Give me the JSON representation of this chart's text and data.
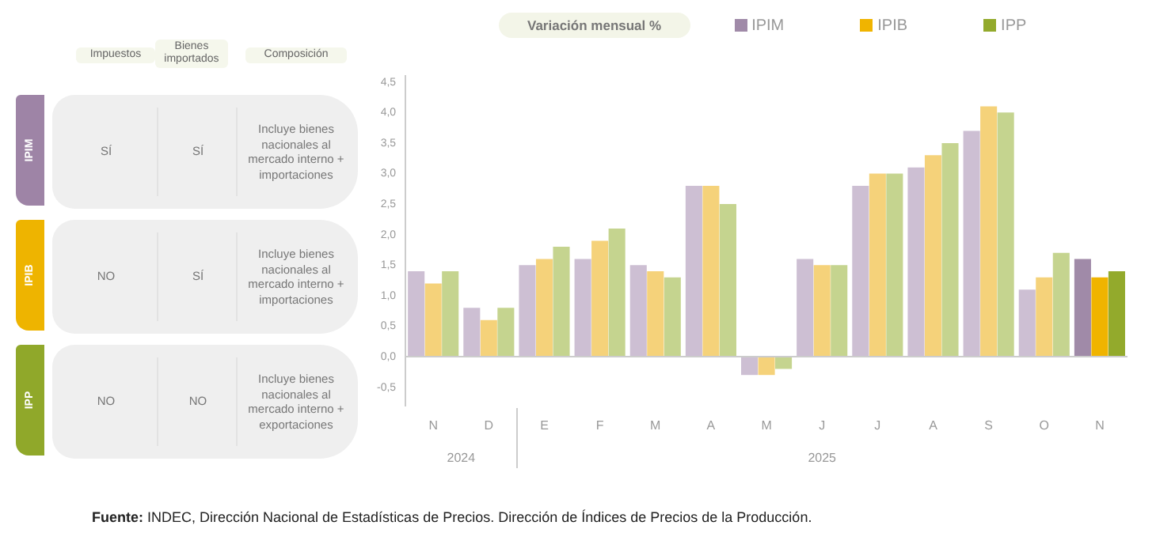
{
  "chart_data": [
    {
      "type": "other",
      "annotations": [
        "Impuestos",
        "Bienes importados",
        "Composición",
        "IPIM",
        "SÍ",
        "SÍ",
        "Incluye bienes nacionales al mercado interno + importaciones",
        "IPIB",
        "NO",
        "SÍ",
        "Incluye bienes nacionales al mercado interno + importaciones",
        "IPP",
        "NO",
        "NO",
        "Incluye bienes nacionales al mercado interno + exportaciones"
      ],
      "colors": [
        "#9e84a6",
        "#eeb400",
        "#90a82a"
      ]
    },
    {
      "type": "bar",
      "legend_title": "Variación mensual %",
      "legend": "top right",
      "categories": [
        "N",
        "D",
        "E",
        "F",
        "M",
        "A",
        "M",
        "J",
        "J",
        "A",
        "S",
        "O",
        "N"
      ],
      "series": [
        {
          "name": "IPIM",
          "color": "#a08aa8",
          "colors": [
            "#cdbfd3",
            "#cdbfd3",
            "#cdbfd3",
            "#cdbfd3",
            "#cdbfd3",
            "#cdbfd3",
            "#cdbfd3",
            "#cdbfd3",
            "#cdbfd3",
            "#cdbfd3",
            "#cdbfd3",
            "#cdbfd3",
            "#a08aa8"
          ],
          "values": [
            1.4,
            0.8,
            1.5,
            1.6,
            1.5,
            2.8,
            -0.3,
            1.6,
            2.8,
            3.1,
            3.7,
            1.1,
            1.6
          ]
        },
        {
          "name": "IPIB",
          "color": "#f0b400",
          "colors": [
            "#f5d27a",
            "#f5d27a",
            "#f5d27a",
            "#f5d27a",
            "#f5d27a",
            "#f5d27a",
            "#f5d27a",
            "#f5d27a",
            "#f5d27a",
            "#f5d27a",
            "#f5d27a",
            "#f5d27a",
            "#f0b400"
          ],
          "values": [
            1.2,
            0.6,
            1.6,
            1.9,
            1.4,
            2.8,
            -0.3,
            1.5,
            3.0,
            3.3,
            4.1,
            1.3,
            1.3
          ]
        },
        {
          "name": "IPP",
          "color": "#93aa2c",
          "colors": [
            "#c5d48f",
            "#c5d48f",
            "#c5d48f",
            "#c5d48f",
            "#c5d48f",
            "#c5d48f",
            "#c5d48f",
            "#c5d48f",
            "#c5d48f",
            "#c5d48f",
            "#c5d48f",
            "#c5d48f",
            "#93aa2c"
          ],
          "values": [
            1.4,
            0.8,
            1.8,
            2.1,
            1.3,
            2.5,
            -0.2,
            1.5,
            3.0,
            3.5,
            4.0,
            1.7,
            1.4
          ]
        }
      ],
      "ylim": [
        -0.8,
        4.6
      ],
      "yticks": [
        {
          "value": -0.5,
          "label": "-0,5"
        },
        {
          "value": 0,
          "label": "0,0"
        },
        {
          "value": 0.5,
          "label": "0,5"
        },
        {
          "value": 1,
          "label": "1,0"
        },
        {
          "value": 1.5,
          "label": "1,5"
        },
        {
          "value": 2,
          "label": "2,0"
        },
        {
          "value": 2.5,
          "label": "2,5"
        },
        {
          "value": 3,
          "label": "3,0"
        },
        {
          "value": 3.5,
          "label": "3,5"
        },
        {
          "value": 4,
          "label": "4,0"
        },
        {
          "value": 4.5,
          "label": "4,5"
        }
      ],
      "annotations": [
        "2024",
        "2025",
        "Fuente: INDEC, Dirección Nacional de Estadísticas de Precios. Dirección de Índices de Precios de la Producción."
      ]
    }
  ]
}
